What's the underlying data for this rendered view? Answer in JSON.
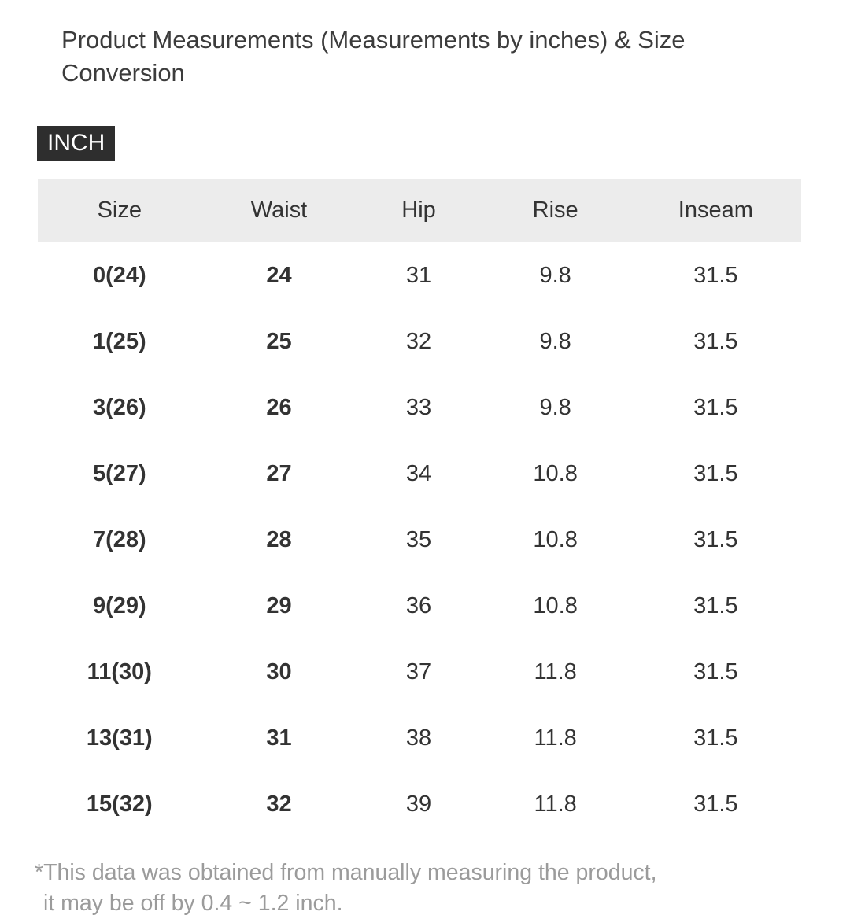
{
  "page": {
    "title": "Product Measurements (Measurements by inches) & Size Conversion",
    "unit_badge": "INCH",
    "footnote": {
      "line1": "*This data was obtained from manually measuring the product,",
      "line2": "it may be off by 0.4 ~ 1.2 inch."
    }
  },
  "size_table": {
    "columns": [
      "Size",
      "Waist",
      "Hip",
      "Rise",
      "Inseam"
    ],
    "bold_columns": [
      0,
      1
    ],
    "rows": [
      [
        "0(24)",
        "24",
        "31",
        "9.8",
        "31.5"
      ],
      [
        "1(25)",
        "25",
        "32",
        "9.8",
        "31.5"
      ],
      [
        "3(26)",
        "26",
        "33",
        "9.8",
        "31.5"
      ],
      [
        "5(27)",
        "27",
        "34",
        "10.8",
        "31.5"
      ],
      [
        "7(28)",
        "28",
        "35",
        "10.8",
        "31.5"
      ],
      [
        "9(29)",
        "29",
        "36",
        "10.8",
        "31.5"
      ],
      [
        "11(30)",
        "30",
        "37",
        "11.8",
        "31.5"
      ],
      [
        "13(31)",
        "31",
        "38",
        "11.8",
        "31.5"
      ],
      [
        "15(32)",
        "32",
        "39",
        "11.8",
        "31.5"
      ]
    ]
  },
  "colors": {
    "badge_bg": "#2e2e2e",
    "badge_text": "#ffffff",
    "table_header_bg": "#ececec",
    "body_text": "#333333",
    "footnote_text": "#9b9b9b"
  }
}
